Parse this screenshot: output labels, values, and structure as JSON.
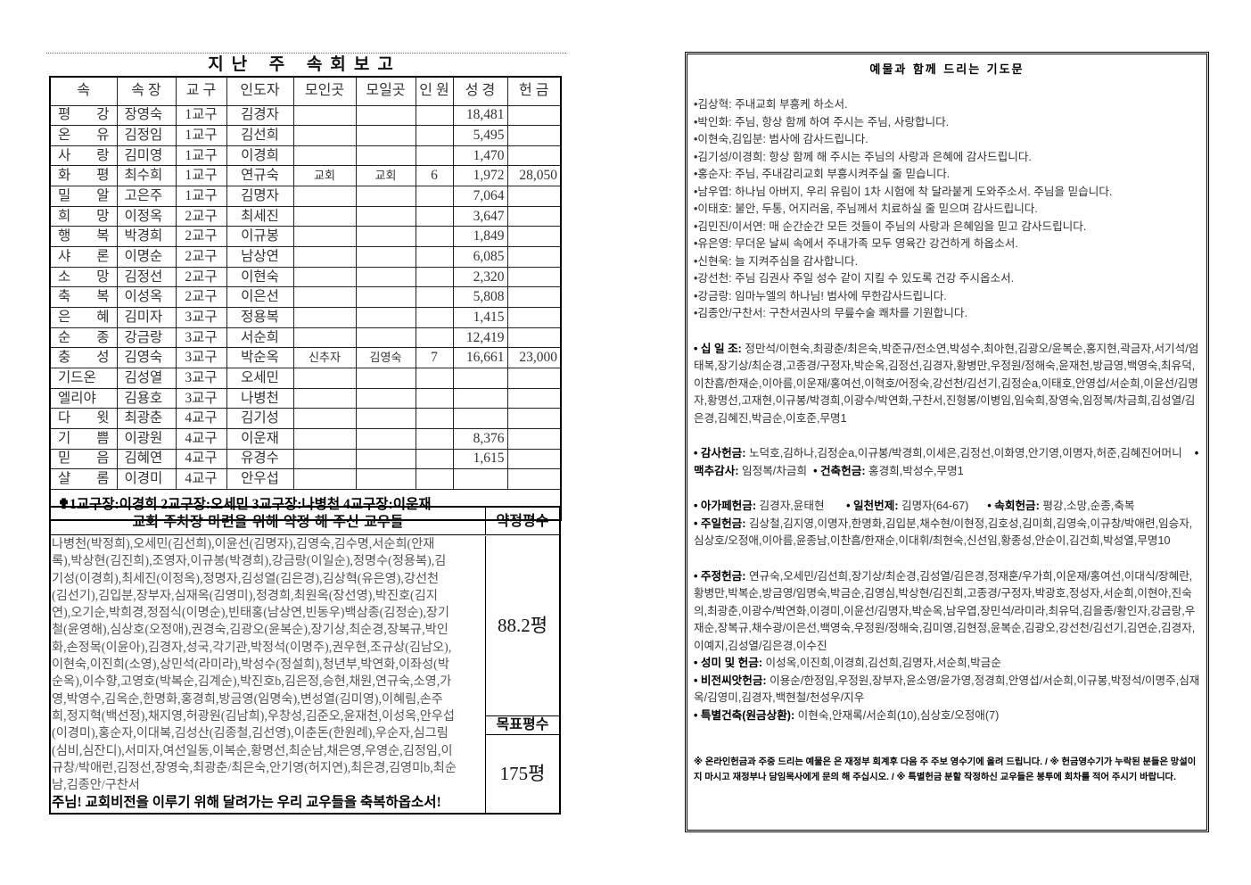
{
  "report": {
    "title": "지난 주 속회보고",
    "headers": [
      "속",
      "속 장",
      "교 구",
      "인도자",
      "모인곳",
      "모일곳",
      "인 원",
      "성 경",
      "헌 금"
    ],
    "rows": [
      [
        "평 강",
        "장영숙",
        "1교구",
        "김경자",
        "",
        "",
        "",
        "18,481",
        ""
      ],
      [
        "온 유",
        "김정임",
        "1교구",
        "김선희",
        "",
        "",
        "",
        "5,495",
        ""
      ],
      [
        "사 랑",
        "김미영",
        "1교구",
        "이경희",
        "",
        "",
        "",
        "1,470",
        ""
      ],
      [
        "화 평",
        "최수희",
        "1교구",
        "연규숙",
        "교회",
        "교회",
        "6",
        "1,972",
        "28,050"
      ],
      [
        "밀 알",
        "고은주",
        "1교구",
        "김명자",
        "",
        "",
        "",
        "7,064",
        ""
      ],
      [
        "희 망",
        "이정옥",
        "2교구",
        "최세진",
        "",
        "",
        "",
        "3,647",
        ""
      ],
      [
        "행 복",
        "박경희",
        "2교구",
        "이규봉",
        "",
        "",
        "",
        "1,849",
        ""
      ],
      [
        "샤 론",
        "이명순",
        "2교구",
        "남상연",
        "",
        "",
        "",
        "6,085",
        ""
      ],
      [
        "소 망",
        "김정선",
        "2교구",
        "이현숙",
        "",
        "",
        "",
        "2,320",
        ""
      ],
      [
        "축 복",
        "이성옥",
        "2교구",
        "이은선",
        "",
        "",
        "",
        "5,808",
        ""
      ],
      [
        "은 혜",
        "김미자",
        "3교구",
        "정용복",
        "",
        "",
        "",
        "1,415",
        ""
      ],
      [
        "순 종",
        "강금랑",
        "3교구",
        "서순희",
        "",
        "",
        "",
        "12,419",
        ""
      ],
      [
        "충 성",
        "김영숙",
        "3교구",
        "박순옥",
        "신추자",
        "김영숙",
        "7",
        "16,661",
        "23,000"
      ],
      [
        "기드온",
        "김성열",
        "3교구",
        "오세민",
        "",
        "",
        "",
        "",
        ""
      ],
      [
        "엘리야",
        "김용호",
        "3교구",
        "나병천",
        "",
        "",
        "",
        "",
        ""
      ],
      [
        "다 윗",
        "최광춘",
        "4교구",
        "김기성",
        "",
        "",
        "",
        "",
        ""
      ],
      [
        "기 쁨",
        "이광원",
        "4교구",
        "이운재",
        "",
        "",
        "",
        "8,376",
        ""
      ],
      [
        "믿 음",
        "김혜연",
        "4교구",
        "유경수",
        "",
        "",
        "",
        "1,615",
        ""
      ],
      [
        "샬 롬",
        "이경미",
        "4교구",
        "안우섭",
        "",
        "",
        "",
        "",
        ""
      ]
    ],
    "footer": "✟1교구장:이경희 2교구장:오세민 3교구장:나병천 4교구장:이운재"
  },
  "pledge": {
    "title": "교회 주차장 마련을 위해 약정 해 주신 교우들",
    "pledged_label": "약정평수",
    "pledged_value": "88.2평",
    "target_label": "목표평수",
    "target_value": "175평",
    "lines": [
      "나병천(박정희),오세민(김선희),이윤선(김명자),김영숙,김수명,서순희(안재",
      "록),박상현(김진희),조영자,이규봉(박경희),강금랑(이일순),정명수(정용복),김",
      "기성(이경희),최세진(이정옥),정명자,김성열(김은경),김상혁(유은영),강선천",
      "(김선기),김입분,장부자,심재옥(김영미),정경희,최원옥(장선영),박진호(김지",
      "연),오기순,박희경,정점식(이명순),빈태홍(남상연,빈동우)백삼종(김정순),장기",
      "철(윤영해),심상호(오정애),권경숙,김광오(윤복순),장기상,최순경,장복규,박인",
      "화,손정목(이윤아),김경자,성국,각기관,박정석(이명주),권우현,조규상(김남오),",
      "이현숙,이진희(소영),상민석(라미라),박성수(정설희),청년부,박연화,이좌성(박",
      "순옥),이수향,고영호(박복순,김계순),박진호b,김은정,승현,채원,연규숙,소영,가",
      "영,박영수,김옥순,한명화,홍경희,방금영(임명숙),변성열(김미영),이혜림,손주",
      "희,정지혁(백선정),채지영,허광원(김남희),우창성,김준오,윤재천,이성옥,안우섭",
      "(이경미),홍순자,이대복,김성산(김종철,김선영),이춘돈(한원례),우순자,심그림",
      "(심비,심잔디),서미자,여선일동,이복순,황명선,최순남,채은영,우영순,김정임,이",
      "규창/박애런,김정선,장영숙,최광춘/최은숙,안기영(허지연),최은경,김영미b,최순",
      "남,김종안/구찬서"
    ],
    "blessing": "주님! 교회비전을 이루기 위해 달려가는 우리 교우들을 축복하옵소서!"
  },
  "offering": {
    "title": "예물과 함께 드리는 기도문",
    "prayers": [
      "•김상혁: 주내교회 부흥케 하소서.",
      "•박인화: 주님, 항상 함께 하여 주시는 주님, 사랑합니다.",
      "•이현숙,김입분: 범사에 감사드립니다.",
      "•김기성/이경희: 항상 함께 해 주시는 주님의 사랑과 은혜에 감사드립니다.",
      "•홍순자: 주님, 주내감리교회 부흥시켜주실 줄 믿습니다.",
      "•남우엽: 하나님 아버지, 우리 유림이 1차 시험에 착 달라붙게 도와주소서. 주님을 믿습니다.",
      "•이태호: 불안, 두통, 어지러움, 주님께서 치료하실 줄 믿으며 감사드립니다.",
      "•김민진/이서연: 매 순간순간 모든 것들이 주님의 사랑과 은혜임을 믿고 감사드립니다.",
      "•유은영: 무더운 날씨 속에서 주내가족 모두 영육간 강건하게 하옵소서.",
      "•신현욱: 늘 지켜주심을 감사합니다.",
      "•강선천: 주님 김권사 주일 성수 같이 지킬 수 있도록 건강 주시옵소서.",
      "•강금랑: 임마누엘의 하나님! 범사에 무한감사드립니다.",
      "•김종안/구찬서: 구찬서권사의 무릎수술 쾌차를 기원합니다."
    ],
    "tithe": {
      "label": "• 십 일 조:",
      "text": " 정만석/이현숙,최광춘/최은숙,박준규/전소연,박성수,최아현,김광오/윤복순,홍지현,곽금자,서기석/엄태복,장기상/최순경,고종경/구정자,박순옥,김정선,김경자,황병만,우정원/정해숙,윤재천,방금영,백영숙,최유덕,이찬흠/한재순,이아름,이운재/홍여선,이혁호/어정숙,강선천/김선기,김정순a,이태호,안영섭/서순희,이윤선/김명자,황명선,고재현,이규봉/박경희,이광수/박연화,구찬서,진형봉/이병임,임숙희,장영숙,임정복/차금희,김성열/김은경,김혜진,박금순,이호준,무명1"
    },
    "thanks": {
      "label": "• 감사헌금:",
      "text": " 노덕호,김하나,김정순a,이규봉/박경희,이세은,김정선,이화영,안기영,이명자,허준,김혜진어머니"
    },
    "harvest": {
      "label": "• 맥추감사:",
      "text": " 임정복/차금희"
    },
    "building": {
      "label": "• 건축헌금:",
      "text": " 홍경희,박성수,무명1"
    },
    "agape": {
      "label": "• 아가페헌금:",
      "text": " 김경자,윤태현"
    },
    "thousand": {
      "label": "• 일천번제:",
      "text": " 김명자(64-67)"
    },
    "cell": {
      "label": "• 속회헌금:",
      "text": " 평강,소망,순종,축복"
    },
    "sunday": {
      "label": "• 주일헌금:",
      "text": " 김상철,김지영,이명자,한명화,김입분,채수현/이현정,김호성,김미희,김영숙,이규창/박애련,임승자,심상호/오정애,이아름,윤종남,이찬흠/한재순,이대휘/최현숙,신선임,황종성,안순이,김건희,박성열,무명10"
    },
    "weekly": {
      "label": "• 주정헌금:",
      "text": " 연규숙,오세민/김선희,장기상/최순경,김성열/김은경,정재훈/우가희,이운재/홍여선,이대식/장혜란,황병만,박복순,방금영/임명숙,박금순,김영심,박상현/김진희,고종경/구정자,박광호,정성자,서순희,이현아,진숙의,최광춘,이광수/박연화,이경미,이윤선/김명자,박순옥,남우엽,장민석/라미라,최유덕,김을종/황인자,강금랑,우재순,장복규,채수광/이은선,백영숙,우정원/정해숙,김미영,김현정,윤복순,김광오,강선천/김선기,김연순,김경자,이예지,김성열/김은경,이수진"
    },
    "rice": {
      "label": "• 성미 및 헌금:",
      "text": " 이성옥,이진희,이경희,김선희,김명자,서순희,박금순"
    },
    "vision": {
      "label": "• 비전씨앗헌금:",
      "text": " 이용순/한정임,우정원,장부자,윤소영/윤가영,정경희,안영섭/서순희,이규봉,박정석/이명주,심재옥/김영미,김경자,백현철/천성우/지우"
    },
    "special": {
      "label": "• 특별건축(원금상환):",
      "text": " 이현숙,안재록/서순희(10),심상호/오정애(7)"
    },
    "notes": "※ 온라인헌금과 주중 드리는 예물은 은 재정부 회계후 다음 주 주보 영수기에 올려 드립니다. / ※ 헌금영수기가 누락된 분들은 망설이지 마시고 재정부나 담임목사에게 문의 해 주십시오. / ※ 특별헌금 분할 작정하신 교우들은 봉투에 회차를 적어 주시기 바랍니다."
  }
}
